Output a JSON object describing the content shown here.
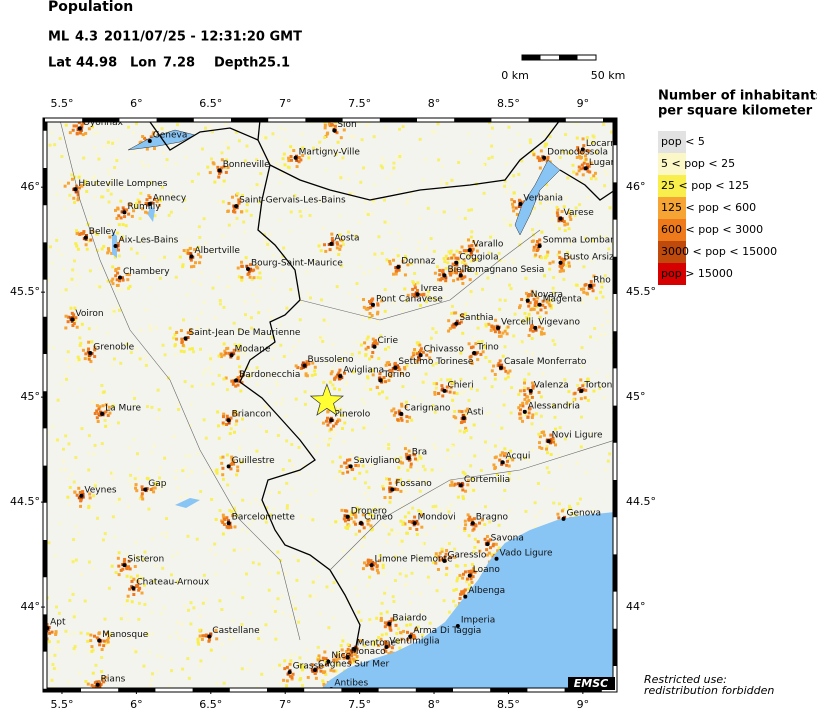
{
  "header": {
    "title": "Population",
    "magnitude_type": "ML",
    "magnitude": 4.3,
    "datetime": "2011/07/25 - 12:31:20 GMT",
    "lat_label": "Lat",
    "lat": 44.98,
    "lon_label": "Lon",
    "lon": 7.28,
    "depth_label": "Depth",
    "depth": 25.1
  },
  "scale_bar": {
    "start": "0 km",
    "end": "50 km"
  },
  "map": {
    "lon_range": [
      5.386,
      9.216
    ],
    "lat_range": [
      43.605,
      46.32
    ],
    "lon_ticks": [
      {
        "value": 5.5,
        "label": "5.5°"
      },
      {
        "value": 6,
        "label": "6°"
      },
      {
        "value": 6.5,
        "label": "6.5°"
      },
      {
        "value": 7,
        "label": "7°"
      },
      {
        "value": 7.5,
        "label": "7.5°"
      },
      {
        "value": 8,
        "label": "8°"
      },
      {
        "value": 8.5,
        "label": "8.5°"
      },
      {
        "value": 9,
        "label": "9°"
      }
    ],
    "lat_ticks": [
      {
        "value": 44,
        "label": "44°"
      },
      {
        "value": 44.5,
        "label": "44.5°"
      },
      {
        "value": 45,
        "label": "45°"
      },
      {
        "value": 45.5,
        "label": "45.5°"
      },
      {
        "value": 46,
        "label": "46°"
      }
    ]
  },
  "legend": {
    "title": [
      "Number of inhabitants",
      "per square kilometer"
    ],
    "items": [
      {
        "label": "pop < 5",
        "color": "#e2e2e2"
      },
      {
        "label": "5 < pop < 25",
        "color": "#fbf7c6"
      },
      {
        "label": "25 < pop < 125",
        "color": "#f8ef4c"
      },
      {
        "label": "125 < pop < 600",
        "color": "#f6a534"
      },
      {
        "label": "600 < pop < 3000",
        "color": "#ee7a1c"
      },
      {
        "label": "3000 < pop < 15000",
        "color": "#bf4a0c"
      },
      {
        "label": "pop > 15000",
        "color": "#d60000"
      }
    ]
  },
  "cities": [
    {
      "name": "Oyonnax",
      "lon": 5.62,
      "lat": 46.28
    },
    {
      "name": "Geneva",
      "lon": 6.09,
      "lat": 46.22
    },
    {
      "name": "Sion",
      "lon": 7.33,
      "lat": 46.27
    },
    {
      "name": "Martigny-Ville",
      "lon": 7.07,
      "lat": 46.14
    },
    {
      "name": "Bonneville",
      "lon": 6.56,
      "lat": 46.08
    },
    {
      "name": "Domodossola",
      "lon": 8.74,
      "lat": 46.14
    },
    {
      "name": "Locarno",
      "lon": 9.0,
      "lat": 46.18
    },
    {
      "name": "Lugano",
      "lon": 9.02,
      "lat": 46.09
    },
    {
      "name": "Hauteville Lompnes",
      "lon": 5.59,
      "lat": 45.99
    },
    {
      "name": "Annecy",
      "lon": 6.09,
      "lat": 45.92
    },
    {
      "name": "Rumilly",
      "lon": 5.92,
      "lat": 45.88
    },
    {
      "name": "Saint-Gervais-Les-Bains",
      "lon": 6.67,
      "lat": 45.91
    },
    {
      "name": "Belley",
      "lon": 5.66,
      "lat": 45.76
    },
    {
      "name": "Aix-Les-Bains",
      "lon": 5.86,
      "lat": 45.72
    },
    {
      "name": "Chambery",
      "lon": 5.89,
      "lat": 45.57
    },
    {
      "name": "Albertville",
      "lon": 6.37,
      "lat": 45.67
    },
    {
      "name": "Bourg-Saint-Maurice",
      "lon": 6.75,
      "lat": 45.61
    },
    {
      "name": "Aosta",
      "lon": 7.31,
      "lat": 45.73
    },
    {
      "name": "Varallo",
      "lon": 8.24,
      "lat": 45.7
    },
    {
      "name": "Verbania",
      "lon": 8.58,
      "lat": 45.92
    },
    {
      "name": "Varese",
      "lon": 8.85,
      "lat": 45.85
    },
    {
      "name": "Coggiola",
      "lon": 8.15,
      "lat": 45.64
    },
    {
      "name": "Romagnano Sesia",
      "lon": 8.18,
      "lat": 45.58
    },
    {
      "name": "Somma Lombardo",
      "lon": 8.71,
      "lat": 45.72
    },
    {
      "name": "Busto Arsizio",
      "lon": 8.85,
      "lat": 45.64
    },
    {
      "name": "Donnaz",
      "lon": 7.76,
      "lat": 45.62
    },
    {
      "name": "Biella",
      "lon": 8.07,
      "lat": 45.58
    },
    {
      "name": "Ivrea",
      "lon": 7.89,
      "lat": 45.49
    },
    {
      "name": "Pont Canavese",
      "lon": 7.59,
      "lat": 45.44
    },
    {
      "name": "Novara",
      "lon": 8.63,
      "lat": 45.46
    },
    {
      "name": "Magenta",
      "lon": 8.71,
      "lat": 45.44
    },
    {
      "name": "Rho",
      "lon": 9.05,
      "lat": 45.53
    },
    {
      "name": "Vigevano",
      "lon": 8.68,
      "lat": 45.33
    },
    {
      "name": "Santhia",
      "lon": 8.15,
      "lat": 45.35
    },
    {
      "name": "Vercelli",
      "lon": 8.43,
      "lat": 45.33
    },
    {
      "name": "Voiron",
      "lon": 5.57,
      "lat": 45.37
    },
    {
      "name": "Saint-Jean De Maurienne",
      "lon": 6.33,
      "lat": 45.28
    },
    {
      "name": "Modane",
      "lon": 6.64,
      "lat": 45.2
    },
    {
      "name": "Cirie",
      "lon": 7.6,
      "lat": 45.24
    },
    {
      "name": "Chivasso",
      "lon": 7.91,
      "lat": 45.2
    },
    {
      "name": "Trino",
      "lon": 8.27,
      "lat": 45.21
    },
    {
      "name": "Grenoble",
      "lon": 5.69,
      "lat": 45.21
    },
    {
      "name": "Bussoleno",
      "lon": 7.13,
      "lat": 45.15
    },
    {
      "name": "Settimo Torinese",
      "lon": 7.74,
      "lat": 45.14
    },
    {
      "name": "Casale Monferrato",
      "lon": 8.45,
      "lat": 45.14
    },
    {
      "name": "Bardonecchia",
      "lon": 6.67,
      "lat": 45.08
    },
    {
      "name": "Avigliana",
      "lon": 7.37,
      "lat": 45.1
    },
    {
      "name": "Torino",
      "lon": 7.64,
      "lat": 45.08
    },
    {
      "name": "Chieri",
      "lon": 8.07,
      "lat": 45.03
    },
    {
      "name": "Valenza",
      "lon": 8.65,
      "lat": 45.03
    },
    {
      "name": "Tortona",
      "lon": 8.99,
      "lat": 45.03
    },
    {
      "name": "Alessandria",
      "lon": 8.61,
      "lat": 44.93
    },
    {
      "name": "Carignano",
      "lon": 7.78,
      "lat": 44.92
    },
    {
      "name": "Briancon",
      "lon": 6.62,
      "lat": 44.89
    },
    {
      "name": "Pinerolo",
      "lon": 7.31,
      "lat": 44.89
    },
    {
      "name": "La Mure",
      "lon": 5.77,
      "lat": 44.92
    },
    {
      "name": "Asti",
      "lon": 8.2,
      "lat": 44.9
    },
    {
      "name": "Novi Ligure",
      "lon": 8.77,
      "lat": 44.79
    },
    {
      "name": "Bra",
      "lon": 7.83,
      "lat": 44.71
    },
    {
      "name": "Savigliano",
      "lon": 7.44,
      "lat": 44.67
    },
    {
      "name": "Acqui",
      "lon": 8.46,
      "lat": 44.69
    },
    {
      "name": "Guillestre",
      "lon": 6.62,
      "lat": 44.67
    },
    {
      "name": "Cortemilia",
      "lon": 8.18,
      "lat": 44.58
    },
    {
      "name": "Fossano",
      "lon": 7.72,
      "lat": 44.56
    },
    {
      "name": "Gap",
      "lon": 6.06,
      "lat": 44.56
    },
    {
      "name": "Veynes",
      "lon": 5.63,
      "lat": 44.53
    },
    {
      "name": "Barcelonnette",
      "lon": 6.62,
      "lat": 44.4
    },
    {
      "name": "Dronero",
      "lon": 7.42,
      "lat": 44.43
    },
    {
      "name": "Cuneo",
      "lon": 7.51,
      "lat": 44.4
    },
    {
      "name": "Mondovi",
      "lon": 7.87,
      "lat": 44.4
    },
    {
      "name": "Bragno",
      "lon": 8.26,
      "lat": 44.4
    },
    {
      "name": "Genova",
      "lon": 8.87,
      "lat": 44.42
    },
    {
      "name": "Savona",
      "lon": 8.36,
      "lat": 44.3
    },
    {
      "name": "Vado Ligure",
      "lon": 8.42,
      "lat": 44.23
    },
    {
      "name": "Limone Piemonte",
      "lon": 7.58,
      "lat": 44.2
    },
    {
      "name": "Garessio",
      "lon": 8.07,
      "lat": 44.22
    },
    {
      "name": "Sisteron",
      "lon": 5.92,
      "lat": 44.2
    },
    {
      "name": "Loano",
      "lon": 8.24,
      "lat": 44.15
    },
    {
      "name": "Chateau-Arnoux",
      "lon": 5.98,
      "lat": 44.09
    },
    {
      "name": "Albenga",
      "lon": 8.21,
      "lat": 44.05
    },
    {
      "name": "Apt",
      "lon": 5.4,
      "lat": 43.9
    },
    {
      "name": "Castellane",
      "lon": 6.49,
      "lat": 43.86
    },
    {
      "name": "Manosque",
      "lon": 5.75,
      "lat": 43.84
    },
    {
      "name": "Baiardo",
      "lon": 7.7,
      "lat": 43.92
    },
    {
      "name": "Imperia",
      "lon": 8.16,
      "lat": 43.91
    },
    {
      "name": "Arma Di Taggia",
      "lon": 7.84,
      "lat": 43.86
    },
    {
      "name": "Mentone",
      "lon": 7.46,
      "lat": 43.8
    },
    {
      "name": "Ventimiglia",
      "lon": 7.68,
      "lat": 43.81
    },
    {
      "name": "Monaco",
      "lon": 7.42,
      "lat": 43.76
    },
    {
      "name": "Nice",
      "lon": 7.29,
      "lat": 43.74
    },
    {
      "name": "Cagnes Sur Mer",
      "lon": 7.2,
      "lat": 43.7
    },
    {
      "name": "Grasse",
      "lon": 7.03,
      "lat": 43.69
    },
    {
      "name": "Antibes",
      "lon": 7.31,
      "lat": 43.61
    },
    {
      "name": "Rians",
      "lon": 5.74,
      "lat": 43.63
    }
  ],
  "footer": {
    "restriction": [
      "Restricted use:",
      "redistribution forbidden"
    ],
    "agency": "EMSC"
  }
}
